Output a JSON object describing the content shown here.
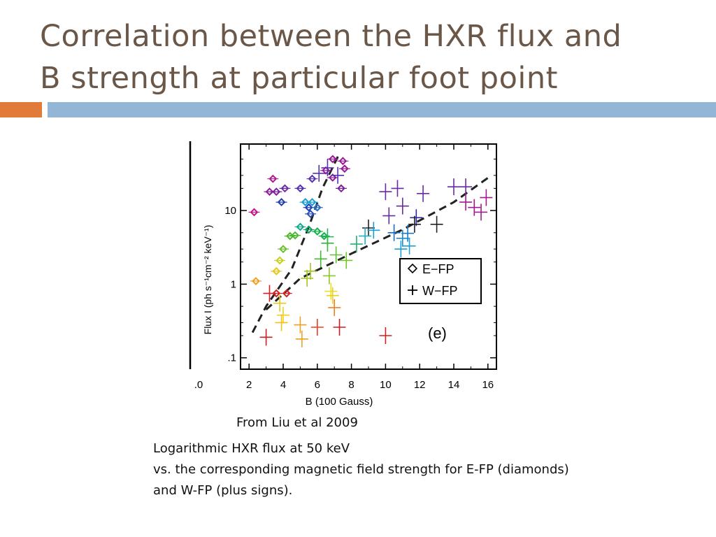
{
  "slide": {
    "title_line1": "Correlation between the HXR flux and",
    "title_line2": "B strength at particular foot point",
    "accent_orange": "#e07b39",
    "accent_blue": "#93b6d6"
  },
  "caption": {
    "source": "From Liu et al 2009",
    "line1": "Logarithmic HXR flux at 50 keV",
    "line2": "vs. the corresponding magnetic field strength for E-FP (diamonds)",
    "line3": "and W-FP (plus signs)."
  },
  "chart_data": {
    "type": "scatter",
    "xlabel": "B (100 Gauss)",
    "ylabel": "Flux I (ph s⁻¹cm⁻² keV⁻¹)",
    "x_ticks": [
      ".0",
      "2",
      "4",
      "6",
      "8",
      "10",
      "12",
      "14",
      "16"
    ],
    "y_ticks": [
      ".1",
      "1",
      "10"
    ],
    "xlim": [
      1.5,
      16.5
    ],
    "ylim": [
      0.07,
      80
    ],
    "y_scale": "log",
    "panel_label": "(e)",
    "legend": {
      "position": "right-middle",
      "entries": [
        "E−FP",
        "W−FP"
      ]
    },
    "series": [
      {
        "name": "E−FP",
        "marker": "diamond",
        "points": [
          {
            "x": 2.3,
            "y": 9.5,
            "c": "#c2118a"
          },
          {
            "x": 3.4,
            "y": 27,
            "c": "#b01890"
          },
          {
            "x": 4.1,
            "y": 20,
            "c": "#6d2aa8"
          },
          {
            "x": 3.2,
            "y": 18,
            "c": "#8b1c9a"
          },
          {
            "x": 3.6,
            "y": 18,
            "c": "#7a22a0"
          },
          {
            "x": 3.9,
            "y": 13,
            "c": "#1f3fb0"
          },
          {
            "x": 5.0,
            "y": 20,
            "c": "#5530b0"
          },
          {
            "x": 5.7,
            "y": 27,
            "c": "#5530b0"
          },
          {
            "x": 6.5,
            "y": 35,
            "c": "#9a1a98"
          },
          {
            "x": 6.9,
            "y": 50,
            "c": "#9a1a98"
          },
          {
            "x": 7.5,
            "y": 47,
            "c": "#9a1a98"
          },
          {
            "x": 7.6,
            "y": 37,
            "c": "#9a1a98"
          },
          {
            "x": 6.9,
            "y": 28,
            "c": "#8a2098"
          },
          {
            "x": 7.4,
            "y": 20,
            "c": "#7a2098"
          },
          {
            "x": 5.3,
            "y": 13,
            "c": "#1a9fd4"
          },
          {
            "x": 5.7,
            "y": 13,
            "c": "#1a9fd4"
          },
          {
            "x": 5.5,
            "y": 11,
            "c": "#1f3fb0"
          },
          {
            "x": 5.6,
            "y": 9,
            "c": "#2a50b8"
          },
          {
            "x": 6.0,
            "y": 11,
            "c": "#2a6ec0"
          },
          {
            "x": 5.0,
            "y": 6,
            "c": "#11a890"
          },
          {
            "x": 5.5,
            "y": 5.5,
            "c": "#11a060"
          },
          {
            "x": 6.0,
            "y": 5.2,
            "c": "#1ab04a"
          },
          {
            "x": 6.4,
            "y": 4.5,
            "c": "#1ab04a"
          },
          {
            "x": 4.4,
            "y": 4.5,
            "c": "#4cb830"
          },
          {
            "x": 4.7,
            "y": 4.6,
            "c": "#4cb830"
          },
          {
            "x": 4.0,
            "y": 3.0,
            "c": "#6ac030"
          },
          {
            "x": 3.8,
            "y": 2.1,
            "c": "#c8d018"
          },
          {
            "x": 3.6,
            "y": 1.5,
            "c": "#e6c81a"
          },
          {
            "x": 2.4,
            "y": 1.1,
            "c": "#f0a020"
          },
          {
            "x": 3.6,
            "y": 0.75,
            "c": "#d42020"
          },
          {
            "x": 4.2,
            "y": 0.75,
            "c": "#d42020"
          }
        ]
      },
      {
        "name": "W−FP",
        "marker": "plus",
        "points": [
          {
            "x": 6.1,
            "y": 32,
            "c": "#5530b0"
          },
          {
            "x": 6.6,
            "y": 38,
            "c": "#5530b0"
          },
          {
            "x": 7.2,
            "y": 30,
            "c": "#5530b0"
          },
          {
            "x": 10.0,
            "y": 18,
            "c": "#6a2aa0"
          },
          {
            "x": 10.7,
            "y": 20,
            "c": "#6a2aa0"
          },
          {
            "x": 12.2,
            "y": 17,
            "c": "#6a2aa0"
          },
          {
            "x": 14.0,
            "y": 21,
            "c": "#6a2aa0"
          },
          {
            "x": 14.7,
            "y": 21,
            "c": "#6a2aa0"
          },
          {
            "x": 15.9,
            "y": 15,
            "c": "#a51890"
          },
          {
            "x": 14.7,
            "y": 13,
            "c": "#a51890"
          },
          {
            "x": 15.2,
            "y": 11,
            "c": "#a51890"
          },
          {
            "x": 15.6,
            "y": 9.5,
            "c": "#a51890"
          },
          {
            "x": 11.0,
            "y": 11.5,
            "c": "#6a2aa0"
          },
          {
            "x": 10.2,
            "y": 8.5,
            "c": "#6a2aa0"
          },
          {
            "x": 11.8,
            "y": 8,
            "c": "#2a2aa0"
          },
          {
            "x": 13.0,
            "y": 6.5,
            "c": "#222222"
          },
          {
            "x": 11.7,
            "y": 6.5,
            "c": "#222222"
          },
          {
            "x": 9.0,
            "y": 5.8,
            "c": "#222222"
          },
          {
            "x": 10.5,
            "y": 5.0,
            "c": "#1a6ac8"
          },
          {
            "x": 11.3,
            "y": 4.9,
            "c": "#1a7ac8"
          },
          {
            "x": 11.0,
            "y": 4.2,
            "c": "#1a8ad0"
          },
          {
            "x": 11.4,
            "y": 3.3,
            "c": "#1a9fd4"
          },
          {
            "x": 10.9,
            "y": 3.0,
            "c": "#1a9fd4"
          },
          {
            "x": 9.3,
            "y": 5.4,
            "c": "#1a9fd4"
          },
          {
            "x": 8.8,
            "y": 4.5,
            "c": "#20b0c0"
          },
          {
            "x": 8.3,
            "y": 3.5,
            "c": "#22b070"
          },
          {
            "x": 6.6,
            "y": 4.4,
            "c": "#22b060"
          },
          {
            "x": 6.6,
            "y": 3.6,
            "c": "#30b840"
          },
          {
            "x": 6.2,
            "y": 2.2,
            "c": "#44b830"
          },
          {
            "x": 7.1,
            "y": 2.5,
            "c": "#60c030"
          },
          {
            "x": 7.7,
            "y": 2.1,
            "c": "#70c828"
          },
          {
            "x": 6.7,
            "y": 1.3,
            "c": "#8ac828"
          },
          {
            "x": 5.4,
            "y": 1.2,
            "c": "#a0c820"
          },
          {
            "x": 5.6,
            "y": 1.5,
            "c": "#a0c820"
          },
          {
            "x": 6.8,
            "y": 0.8,
            "c": "#e8e020"
          },
          {
            "x": 6.9,
            "y": 0.7,
            "c": "#e8d020"
          },
          {
            "x": 3.8,
            "y": 0.55,
            "c": "#e8c81a"
          },
          {
            "x": 4.0,
            "y": 0.38,
            "c": "#f0d020"
          },
          {
            "x": 3.9,
            "y": 0.3,
            "c": "#f0c020"
          },
          {
            "x": 5.0,
            "y": 0.28,
            "c": "#f0a020"
          },
          {
            "x": 5.1,
            "y": 0.18,
            "c": "#f0a020"
          },
          {
            "x": 7.0,
            "y": 0.48,
            "c": "#f08020"
          },
          {
            "x": 6.0,
            "y": 0.26,
            "c": "#e84020"
          },
          {
            "x": 7.3,
            "y": 0.26,
            "c": "#c82020"
          },
          {
            "x": 3.0,
            "y": 0.19,
            "c": "#c82020"
          },
          {
            "x": 10.0,
            "y": 0.2,
            "c": "#d42020"
          },
          {
            "x": 3.2,
            "y": 0.75,
            "c": "#d42020"
          }
        ]
      }
    ],
    "fit_lines": [
      {
        "points": [
          [
            2.2,
            0.22
          ],
          [
            3.0,
            0.5
          ],
          [
            4.5,
            1.6
          ],
          [
            5.5,
            6
          ],
          [
            6.3,
            20
          ],
          [
            7.3,
            60
          ]
        ]
      },
      {
        "points": [
          [
            3.0,
            0.45
          ],
          [
            5.0,
            1.2
          ],
          [
            8.0,
            2.6
          ],
          [
            11.0,
            5.5
          ],
          [
            14.0,
            13
          ],
          [
            16.2,
            30
          ]
        ]
      }
    ]
  }
}
